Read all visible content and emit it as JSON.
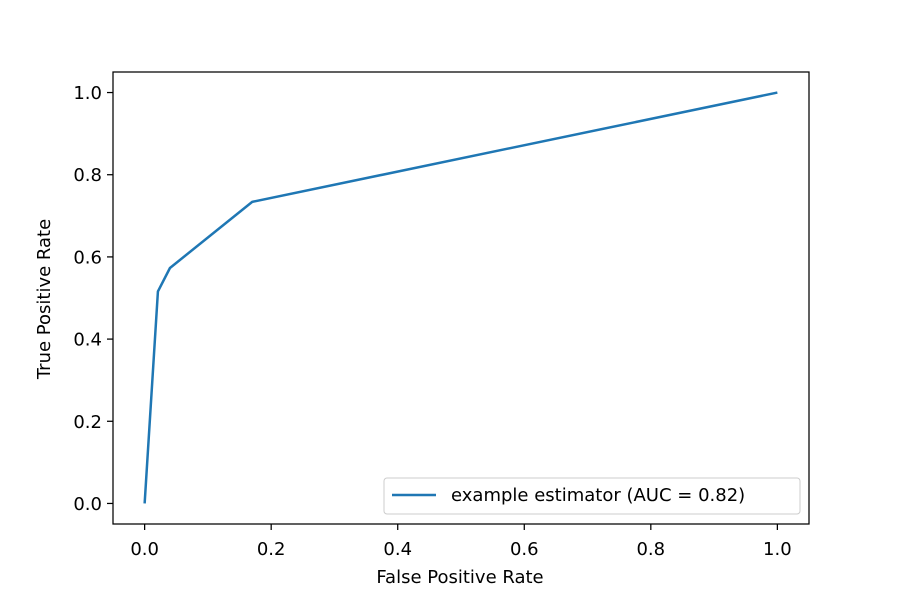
{
  "chart_data": {
    "type": "line",
    "title": "",
    "xlabel": "False Positive Rate",
    "ylabel": "True Positive Rate",
    "xlim": [
      -0.05,
      1.05
    ],
    "ylim": [
      -0.05,
      1.05
    ],
    "xticks": [
      "0.0",
      "0.2",
      "0.4",
      "0.6",
      "0.8",
      "1.0"
    ],
    "yticks": [
      "0.0",
      "0.2",
      "0.4",
      "0.6",
      "0.8",
      "1.0"
    ],
    "grid": false,
    "legend_position": "lower-right",
    "series": [
      {
        "name": "example estimator (AUC = 0.82)",
        "color": "#1f77b4",
        "x": [
          0.0,
          0.021,
          0.04,
          0.17,
          1.0
        ],
        "y": [
          0.0,
          0.516,
          0.573,
          0.734,
          1.0
        ]
      }
    ]
  }
}
